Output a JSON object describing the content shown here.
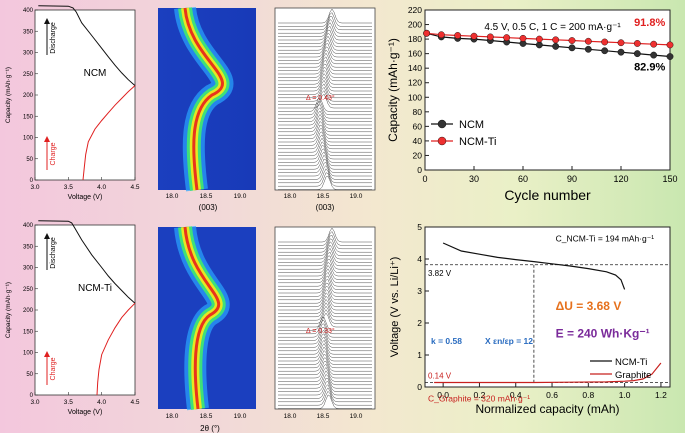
{
  "chart_data": [
    {
      "id": "ncm-voltage",
      "type": "line",
      "xlabel": "Voltage (V)",
      "ylabel": "Capacity (mAh·g⁻¹)",
      "xlim": [
        3.0,
        4.5
      ],
      "ylim": [
        0,
        400
      ],
      "xticks": [
        "3.0",
        "3.5",
        "4.0",
        "4.5"
      ],
      "yticks": [
        "0",
        "50",
        "100",
        "150",
        "200",
        "250",
        "300",
        "350",
        "400"
      ],
      "label": "NCM",
      "discharge_label": "Discharge",
      "charge_label": "Charge",
      "series": [
        {
          "name": "Discharge",
          "color": "#111111",
          "x": [
            3.05,
            3.5,
            3.57,
            3.62,
            3.7,
            3.85,
            4.0,
            4.1,
            4.2,
            4.3,
            4.4,
            4.5
          ],
          "y": [
            410,
            409,
            405,
            395,
            370,
            340,
            310,
            290,
            270,
            252,
            236,
            222
          ]
        },
        {
          "name": "Charge",
          "color": "#e02020",
          "x": [
            3.72,
            3.74,
            3.76,
            3.8,
            3.9,
            4.0,
            4.1,
            4.2,
            4.3,
            4.4,
            4.5
          ],
          "y": [
            0,
            30,
            60,
            90,
            120,
            140,
            158,
            176,
            192,
            208,
            222
          ]
        }
      ]
    },
    {
      "id": "ncm-ti-voltage",
      "type": "line",
      "xlabel": "Voltage (V)",
      "ylabel": "Capacity (mAh·g⁻¹)",
      "xlim": [
        3.0,
        4.5
      ],
      "ylim": [
        0,
        400
      ],
      "xticks": [
        "3.0",
        "3.5",
        "4.0",
        "4.5"
      ],
      "yticks": [
        "0",
        "50",
        "100",
        "150",
        "200",
        "250",
        "300",
        "350",
        "400"
      ],
      "label": "NCM-Ti",
      "discharge_label": "Discharge",
      "charge_label": "Charge",
      "series": [
        {
          "name": "Discharge",
          "color": "#111111",
          "x": [
            3.05,
            3.5,
            3.55,
            3.6,
            3.7,
            3.85,
            4.0,
            4.1,
            4.2,
            4.3,
            4.4,
            4.5
          ],
          "y": [
            410,
            409,
            405,
            392,
            365,
            330,
            300,
            280,
            262,
            246,
            230,
            216
          ]
        },
        {
          "name": "Charge",
          "color": "#e02020",
          "x": [
            3.93,
            3.94,
            3.96,
            4.0,
            4.1,
            4.2,
            4.3,
            4.4,
            4.5
          ],
          "y": [
            0,
            30,
            60,
            95,
            130,
            158,
            182,
            200,
            216
          ]
        }
      ]
    },
    {
      "id": "ncm-cycling",
      "type": "line",
      "title": "4.5 V, 0.5 C, 1 C = 200 mA·g⁻¹",
      "xlabel": "Cycle number",
      "ylabel": "Capacity (mAh·g⁻¹)",
      "xlim": [
        0,
        150
      ],
      "ylim": [
        0,
        220
      ],
      "xticks": [
        "0",
        "30",
        "60",
        "90",
        "120",
        "150"
      ],
      "yticks": [
        "0",
        "20",
        "40",
        "60",
        "80",
        "100",
        "120",
        "140",
        "160",
        "180",
        "200",
        "220"
      ],
      "legend": "bottom-left",
      "series": [
        {
          "name": "NCM",
          "color": "#111111",
          "x": [
            1,
            10,
            20,
            30,
            40,
            50,
            60,
            70,
            80,
            90,
            100,
            110,
            120,
            130,
            140,
            150
          ],
          "y": [
            188,
            183,
            181,
            180,
            178,
            176,
            174,
            172,
            170,
            168,
            166,
            164,
            162,
            160,
            158,
            156
          ]
        },
        {
          "name": "NCM-Ti",
          "color": "#e02020",
          "x": [
            1,
            10,
            20,
            30,
            40,
            50,
            60,
            70,
            80,
            90,
            100,
            110,
            120,
            130,
            140,
            150
          ],
          "y": [
            188,
            186,
            185,
            184,
            183,
            182,
            181,
            180,
            179,
            178,
            177,
            176,
            175,
            174,
            173,
            172
          ]
        }
      ],
      "annotations": [
        "91.8%",
        "82.9%"
      ]
    },
    {
      "id": "full-cell",
      "type": "line",
      "xlabel": "Normalized capacity (mAh)",
      "ylabel": "Voltage (V vs. Li/Li⁺)",
      "xlim": [
        -0.1,
        1.25
      ],
      "ylim": [
        0,
        5
      ],
      "xticks": [
        "0.0",
        "0.2",
        "0.4",
        "0.6",
        "0.8",
        "1.0",
        "1.2"
      ],
      "yticks": [
        "0",
        "1",
        "2",
        "3",
        "4",
        "5"
      ],
      "legend": "bottom-right",
      "series": [
        {
          "name": "NCM-Ti",
          "color": "#111111",
          "x": [
            0,
            0.1,
            0.2,
            0.3,
            0.4,
            0.5,
            0.6,
            0.7,
            0.8,
            0.9,
            0.95,
            0.98,
            1.0
          ],
          "y": [
            4.5,
            4.25,
            4.15,
            4.05,
            3.98,
            3.92,
            3.85,
            3.78,
            3.7,
            3.6,
            3.5,
            3.35,
            3.05
          ]
        },
        {
          "name": "Graphite",
          "color": "#c8201e",
          "x": [
            -0.05,
            0.1,
            0.3,
            0.5,
            0.7,
            0.9,
            1.0,
            1.05,
            1.1,
            1.15,
            1.2
          ],
          "y": [
            0.14,
            0.14,
            0.14,
            0.14,
            0.15,
            0.16,
            0.18,
            0.2,
            0.25,
            0.4,
            0.75
          ]
        }
      ],
      "labels": {
        "cap_ncm": "C_NCM-Ti = 194 mAh·g⁻¹",
        "cap_graphite": "C_Graphite = 320 mAh·g⁻¹",
        "v_high": "3.82 V",
        "v_low": "0.14 V",
        "du": "ΔU = 3.68 V",
        "energy": "E = 240 Wh·Kg⁻¹",
        "k": "k = 0.58",
        "ratio": "X εn/εp = 12"
      }
    }
  ],
  "heatmaps": {
    "ncm_xlabel": "(003)",
    "ncm_ti_xlabel": "2θ (°)",
    "xticks": [
      "18.0",
      "18.5",
      "19.0"
    ]
  },
  "waterfalls": {
    "ncm_xlabel": "(003)",
    "ncm_delta": "Δ = 0.43°",
    "ncm_ti_delta": "Δ = 0.33°",
    "xticks": [
      "18.0",
      "18.5",
      "19.0"
    ]
  }
}
